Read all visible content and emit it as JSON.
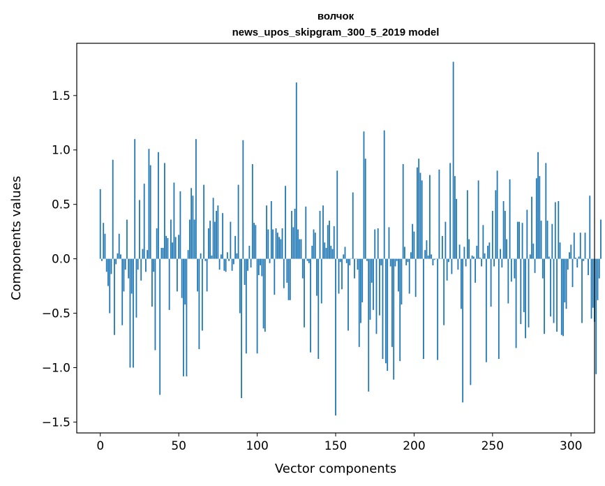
{
  "chart_data": {
    "type": "bar",
    "title": "волчок",
    "subtitle": "news_upos_skipgram_300_5_2019 model",
    "xlabel": "Vector components",
    "ylabel": "Components values",
    "xlim": [
      -15,
      315
    ],
    "ylim": [
      -1.6,
      1.98
    ],
    "xticks": [
      0,
      50,
      100,
      150,
      200,
      250,
      300
    ],
    "yticks": [
      -1.5,
      -1.0,
      -0.5,
      0.0,
      0.5,
      1.0,
      1.5
    ],
    "xtick_labels": [
      "0",
      "50",
      "100",
      "150",
      "200",
      "250",
      "300"
    ],
    "ytick_labels": [
      "−1.5",
      "−1.0",
      "−0.5",
      "0.0",
      "0.5",
      "1.0",
      "1.5"
    ],
    "bar_color": "#1f77b4",
    "grid": false,
    "legend": "none",
    "values": [
      0.64,
      -0.02,
      0.33,
      0.23,
      -0.12,
      -0.25,
      -0.5,
      -0.14,
      0.91,
      -0.7,
      -0.05,
      0.05,
      0.23,
      0.04,
      -0.61,
      -0.3,
      -0.1,
      0.36,
      -0.18,
      -1.0,
      -0.32,
      -1.0,
      1.1,
      -0.54,
      -0.1,
      0.54,
      -0.2,
      0.09,
      0.69,
      -0.12,
      0.08,
      1.01,
      0.86,
      -0.44,
      -0.12,
      -0.84,
      0.28,
      0.98,
      -1.25,
      0.1,
      0.1,
      0.88,
      0.21,
      0.19,
      -0.47,
      0.36,
      0.15,
      0.7,
      0.2,
      -0.3,
      0.22,
      0.62,
      -0.36,
      -1.08,
      -0.42,
      -1.08,
      0.08,
      0.36,
      0.65,
      0.58,
      0.36,
      1.1,
      -0.3,
      -0.83,
      0.05,
      -0.66,
      0.68,
      -0.02,
      -0.3,
      0.28,
      0.35,
      0.03,
      0.56,
      0.34,
      0.44,
      0.49,
      -0.1,
      0.04,
      0.42,
      -0.11,
      -0.12,
      0.06,
      -0.02,
      0.34,
      -0.11,
      -0.05,
      0.21,
      0.05,
      0.68,
      -0.5,
      -1.28,
      1.09,
      -0.24,
      -0.87,
      -0.11,
      0.12,
      -0.08,
      0.87,
      0.33,
      0.31,
      -0.87,
      -0.15,
      -0.06,
      -0.16,
      -0.64,
      -0.67,
      0.49,
      0.27,
      -0.04,
      0.53,
      0.27,
      -0.33,
      0.28,
      0.24,
      0.2,
      0.18,
      0.28,
      -0.27,
      0.67,
      -0.22,
      -0.38,
      -0.38,
      0.44,
      0.29,
      0.46,
      1.62,
      0.27,
      0.18,
      0.18,
      -0.18,
      -0.63,
      0.48,
      -0.02,
      -0.04,
      -0.86,
      0.12,
      0.27,
      0.24,
      -0.34,
      -0.92,
      0.44,
      -0.41,
      0.49,
      0.15,
      0.1,
      0.31,
      0.35,
      0.12,
      0.09,
      0.3,
      -1.44,
      0.81,
      -0.32,
      -0.03,
      -0.28,
      0.04,
      0.11,
      -0.04,
      -0.66,
      -0.06,
      0.0,
      0.61,
      -0.18,
      0.0,
      -0.1,
      -0.81,
      -0.59,
      -0.4,
      1.17,
      0.92,
      -0.02,
      -1.22,
      -0.56,
      -0.22,
      -0.47,
      0.27,
      -0.69,
      0.28,
      -0.52,
      -0.06,
      -0.92,
      1.18,
      -0.96,
      -1.03,
      0.29,
      -0.07,
      -0.81,
      -1.11,
      -0.07,
      -0.02,
      -0.3,
      -0.94,
      -0.42,
      0.87,
      0.11,
      -0.06,
      -0.03,
      -0.32,
      0.06,
      0.32,
      0.25,
      -0.35,
      0.84,
      0.92,
      0.79,
      0.72,
      -0.92,
      0.08,
      0.17,
      0.03,
      0.77,
      0.04,
      -0.06,
      -0.01,
      0.0,
      -0.93,
      0.82,
      0.0,
      0.21,
      -0.61,
      0.34,
      -0.2,
      -0.03,
      0.88,
      -0.14,
      1.81,
      0.76,
      0.55,
      -0.1,
      0.13,
      -0.46,
      -1.32,
      0.11,
      -0.07,
      0.63,
      0.18,
      -1.16,
      0.03,
      0.02,
      -0.22,
      0.12,
      0.72,
      0.01,
      -0.07,
      0.31,
      0.05,
      -0.95,
      0.12,
      0.15,
      -0.44,
      0.44,
      -0.07,
      0.63,
      0.81,
      -0.92,
      0.09,
      -0.08,
      0.53,
      0.44,
      0.18,
      -0.41,
      0.73,
      -0.21,
      0.0,
      -0.18,
      -0.82,
      0.34,
      0.34,
      -0.6,
      0.33,
      -0.49,
      -0.73,
      0.45,
      -0.63,
      0.04,
      0.57,
      0.14,
      -0.13,
      0.74,
      0.98,
      0.76,
      0.35,
      -0.18,
      -0.69,
      0.88,
      0.35,
      0.02,
      -0.53,
      0.32,
      -0.59,
      0.52,
      -0.67,
      0.53,
      0.15,
      -0.7,
      -0.71,
      -0.4,
      -0.46,
      -0.1,
      0.06,
      0.13,
      -0.26,
      0.24,
      0.01,
      -0.08,
      0.02,
      0.24,
      -0.59,
      -0.02,
      0.24,
      0.0,
      -0.15,
      0.58,
      -0.55,
      -0.45,
      -0.58,
      -1.06,
      -0.38,
      -0.18,
      0.36
    ]
  }
}
